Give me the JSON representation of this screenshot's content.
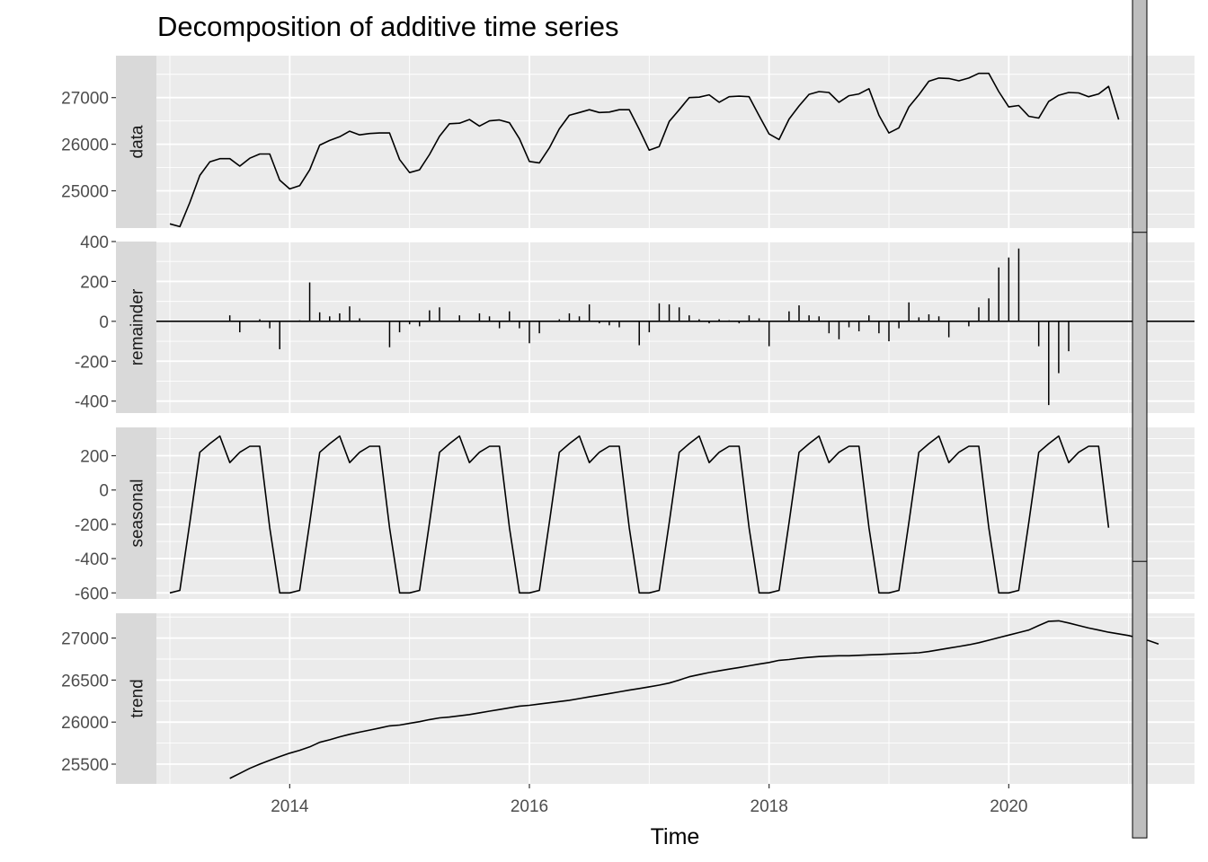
{
  "chart_data": {
    "type": "line",
    "title": "Decomposition of additive time series",
    "xlabel": "Time",
    "xlim": [
      2012.55,
      2021.55
    ],
    "x_ticks": [
      2014,
      2016,
      2018,
      2020
    ],
    "x_tick_labels": [
      "2014",
      "2016",
      "2018",
      "2020"
    ],
    "start": 2013.0,
    "frequency": 12,
    "panels": [
      {
        "name": "data",
        "kind": "line",
        "ylim": [
          24200,
          27900
        ],
        "y_ticks": [
          25000,
          26000,
          27000
        ],
        "y_tick_labels": [
          "25000",
          "26000",
          "27000"
        ],
        "values": [
          24290,
          24230,
          24750,
          25330,
          25620,
          25690,
          25690,
          25530,
          25700,
          25790,
          25790,
          25230,
          25040,
          25110,
          25450,
          25980,
          26080,
          26160,
          26280,
          26200,
          26230,
          26240,
          26240,
          25670,
          25390,
          25450,
          25780,
          26170,
          26440,
          26450,
          26530,
          26390,
          26500,
          26520,
          26460,
          26120,
          25630,
          25600,
          25920,
          26330,
          26620,
          26680,
          26740,
          26680,
          26690,
          26740,
          26740,
          26320,
          25870,
          25950,
          26490,
          26740,
          27000,
          27010,
          27060,
          26900,
          27020,
          27030,
          27020,
          26610,
          26220,
          26100,
          26540,
          26820,
          27070,
          27130,
          27110,
          26900,
          27040,
          27080,
          27190,
          26620,
          26240,
          26350,
          26800,
          27060,
          27350,
          27420,
          27410,
          27360,
          27420,
          27520,
          27520,
          27130,
          26800,
          26830,
          26600,
          26560,
          26920,
          27050,
          27110,
          27100,
          27020,
          27080,
          27240,
          26530
        ]
      },
      {
        "name": "remainder",
        "kind": "bars",
        "ylim": [
          -460,
          400
        ],
        "y_ticks": [
          -400,
          -200,
          0,
          200,
          400
        ],
        "y_tick_labels": [
          "-400",
          "-200",
          "0",
          "200",
          "400"
        ],
        "start": 2013.5,
        "values": [
          30,
          -55,
          0,
          10,
          -35,
          -140,
          0,
          5,
          195,
          45,
          25,
          40,
          75,
          15,
          0,
          0,
          -130,
          -55,
          -15,
          -25,
          55,
          70,
          0,
          30,
          0,
          40,
          25,
          -35,
          50,
          -35,
          -110,
          -60,
          0,
          10,
          40,
          25,
          85,
          -10,
          -20,
          -30,
          0,
          -120,
          -55,
          90,
          85,
          70,
          30,
          10,
          -10,
          10,
          5,
          -10,
          30,
          15,
          -125,
          0,
          50,
          80,
          30,
          25,
          -60,
          -90,
          -30,
          -50,
          30,
          -60,
          -100,
          -35,
          95,
          20,
          35,
          25,
          -80,
          0,
          -25,
          70,
          115,
          270,
          320,
          365,
          0,
          -125,
          -420,
          -260,
          -150
        ]
      },
      {
        "name": "seasonal",
        "kind": "line",
        "ylim": [
          -635,
          365
        ],
        "y_ticks": [
          -600,
          -400,
          -200,
          0,
          200
        ],
        "y_tick_labels": [
          "-600",
          "-400",
          "-200",
          "0",
          "200"
        ],
        "values": [
          -600,
          -585,
          -190,
          220,
          270,
          315,
          160,
          220,
          255,
          255,
          -220,
          -600,
          -600,
          -585,
          -190,
          220,
          270,
          315,
          160,
          220,
          255,
          255,
          -220,
          -600,
          -600,
          -585,
          -190,
          220,
          270,
          315,
          160,
          220,
          255,
          255,
          -220,
          -600,
          -600,
          -585,
          -190,
          220,
          270,
          315,
          160,
          220,
          255,
          255,
          -220,
          -600,
          -600,
          -585,
          -190,
          220,
          270,
          315,
          160,
          220,
          255,
          255,
          -220,
          -600,
          -600,
          -585,
          -190,
          220,
          270,
          315,
          160,
          220,
          255,
          255,
          -220,
          -600,
          -600,
          -585,
          -190,
          220,
          270,
          315,
          160,
          220,
          255,
          255,
          -220,
          -600,
          -600,
          -585,
          -190,
          220,
          270,
          315,
          160,
          220,
          255,
          255,
          -220
        ]
      },
      {
        "name": "trend",
        "kind": "line",
        "ylim": [
          25265,
          27295
        ],
        "y_ticks": [
          25500,
          26000,
          26500,
          27000
        ],
        "y_tick_labels": [
          "25500",
          "26000",
          "26500",
          "27000"
        ],
        "start": 2013.5,
        "values": [
          25330,
          25390,
          25450,
          25500,
          25545,
          25590,
          25630,
          25665,
          25705,
          25760,
          25790,
          25825,
          25855,
          25880,
          25905,
          25930,
          25955,
          25965,
          25985,
          26005,
          26030,
          26050,
          26060,
          26075,
          26090,
          26110,
          26130,
          26150,
          26170,
          26190,
          26200,
          26215,
          26230,
          26245,
          26260,
          26280,
          26300,
          26320,
          26340,
          26360,
          26380,
          26400,
          26420,
          26440,
          26465,
          26500,
          26540,
          26565,
          26590,
          26610,
          26630,
          26650,
          26670,
          26690,
          26710,
          26735,
          26745,
          26760,
          26770,
          26780,
          26785,
          26790,
          26790,
          26795,
          26800,
          26805,
          26810,
          26815,
          26820,
          26825,
          26840,
          26860,
          26880,
          26900,
          26920,
          26945,
          26975,
          27005,
          27035,
          27065,
          27095,
          27150,
          27200,
          27205,
          27180,
          27150,
          27120,
          27095,
          27070,
          27050,
          27030,
          27000,
          26970,
          26930
        ]
      }
    ]
  }
}
